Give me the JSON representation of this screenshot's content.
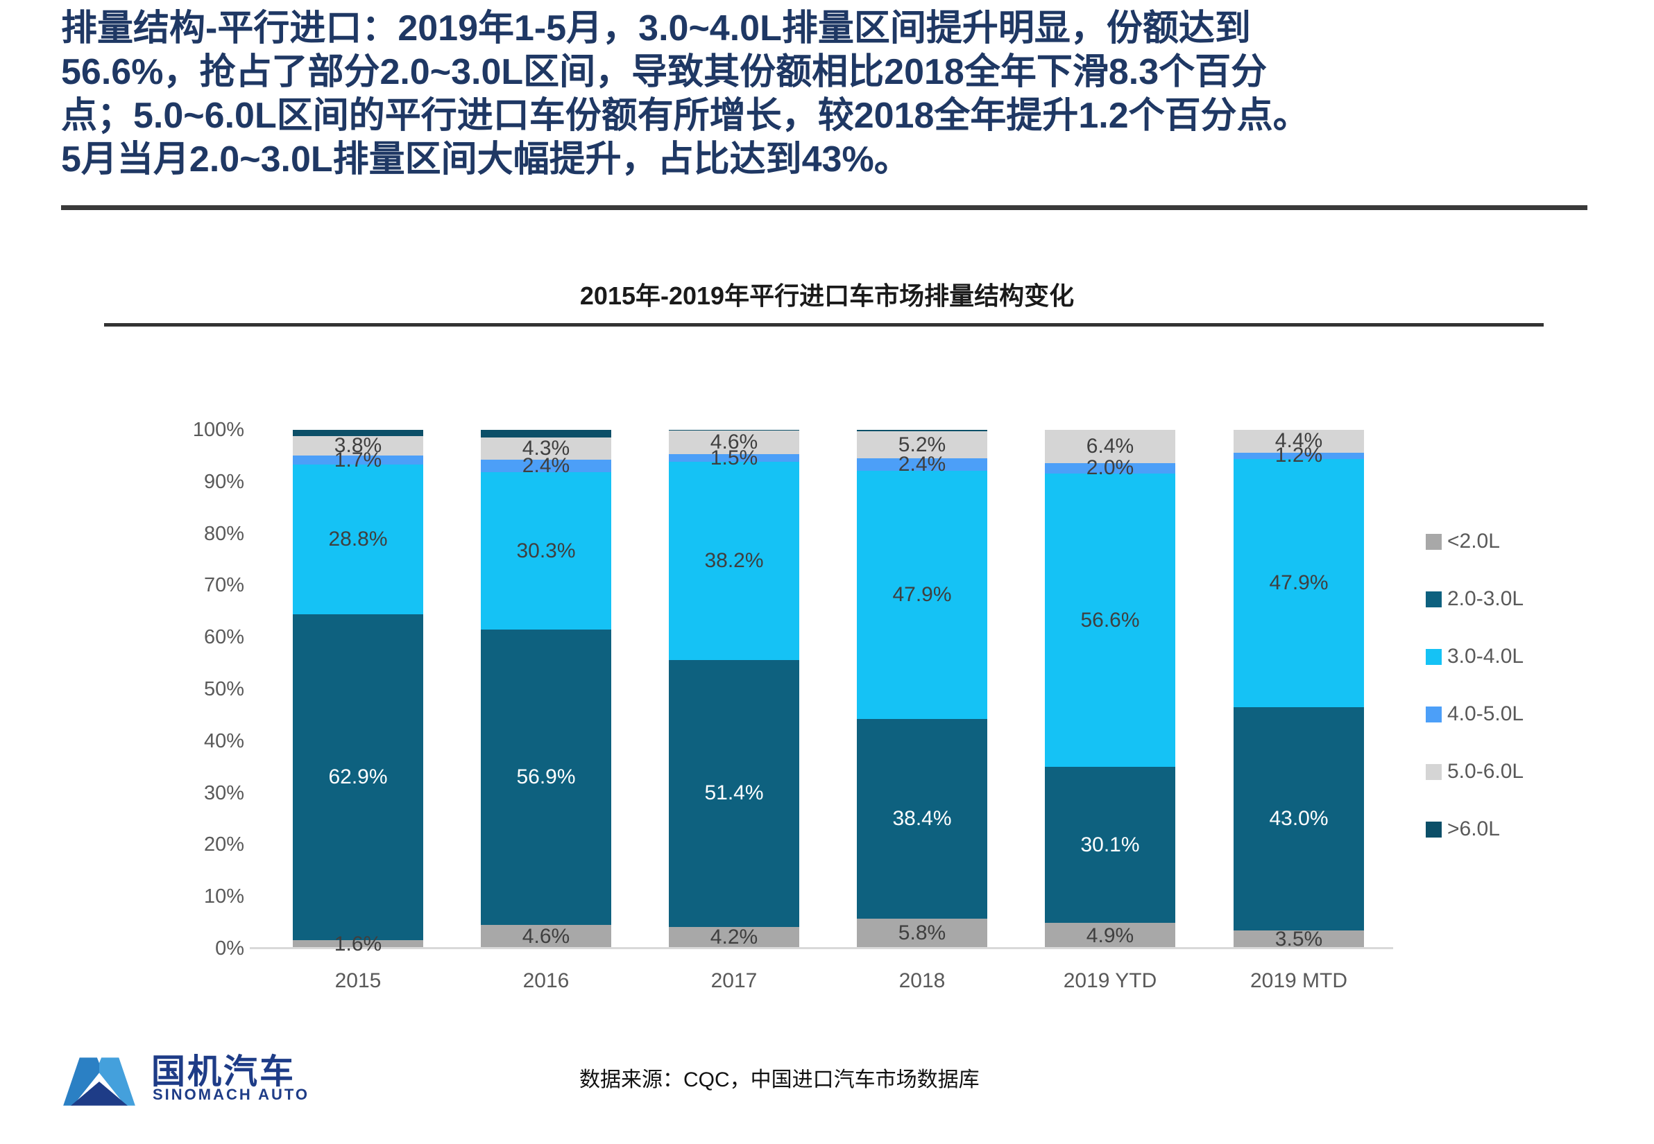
{
  "slide": {
    "headline_lines": [
      "排量结构-平行进口：2019年1-5月，3.0~4.0L排量区间提升明显，份额达到",
      "56.6%，抢占了部分2.0~3.0L区间，导致其份额相比2018全年下滑8.3个百分",
      "点；5.0~6.0L区间的平行进口车份额有所增长，较2018全年提升1.2个百分点。",
      "5月当月2.0~3.0L排量区间大幅提升，占比达到43%。"
    ],
    "source_note": "数据来源：CQC，中国进口汽车市场数据库",
    "logo": {
      "name_cn": "国机汽车",
      "name_en": "SINOMACH AUTO"
    },
    "colors": {
      "headline": "#1F3864",
      "rule": "#3A3A3A",
      "axis_text": "#595959",
      "axis_line": "#D9D9D9",
      "logo_navy": "#1E3C87",
      "logo_blue_left": "#2B80C4",
      "logo_blue_right": "#44A0DC"
    }
  },
  "chart_data": {
    "type": "bar",
    "subtype": "stacked-100-percent",
    "title": "2015年-2019年平行进口车市场排量结构变化",
    "categories": [
      "2015",
      "2016",
      "2017",
      "2018",
      "2019 YTD",
      "2019 MTD"
    ],
    "series": [
      {
        "name": "<2.0L",
        "color": "#A8A8A8",
        "label_color": "#3F3F3F",
        "show_labels": true,
        "values": [
          1.6,
          4.6,
          4.2,
          5.8,
          4.9,
          3.5
        ]
      },
      {
        "name": "2.0-3.0L",
        "color": "#0E617F",
        "label_color": "#FFFFFF",
        "show_labels": true,
        "values": [
          62.9,
          56.9,
          51.4,
          38.4,
          30.1,
          43.0
        ]
      },
      {
        "name": "3.0-4.0L",
        "color": "#15C2F5",
        "label_color": "#3F3F3F",
        "show_labels": true,
        "values": [
          28.8,
          30.3,
          38.2,
          47.9,
          56.6,
          47.9
        ]
      },
      {
        "name": "4.0-5.0L",
        "color": "#4C9FF8",
        "label_color": "#3F3F3F",
        "show_labels": true,
        "values": [
          1.7,
          2.4,
          1.5,
          2.4,
          2.0,
          1.2
        ]
      },
      {
        "name": "5.0-6.0L",
        "color": "#D5D5D5",
        "label_color": "#3F3F3F",
        "show_labels": true,
        "values": [
          3.8,
          4.3,
          4.6,
          5.2,
          6.4,
          4.4
        ]
      },
      {
        "name": ">6.0L",
        "color": "#0C4F68",
        "label_color": "#FFFFFF",
        "show_labels": false,
        "values": [
          1.2,
          1.5,
          0.1,
          0.3,
          0.0,
          0.0
        ]
      }
    ],
    "y_axis": {
      "min": 0,
      "max": 100,
      "step": 10,
      "unit": "%"
    },
    "legend_position": "right",
    "gridlines": false
  }
}
